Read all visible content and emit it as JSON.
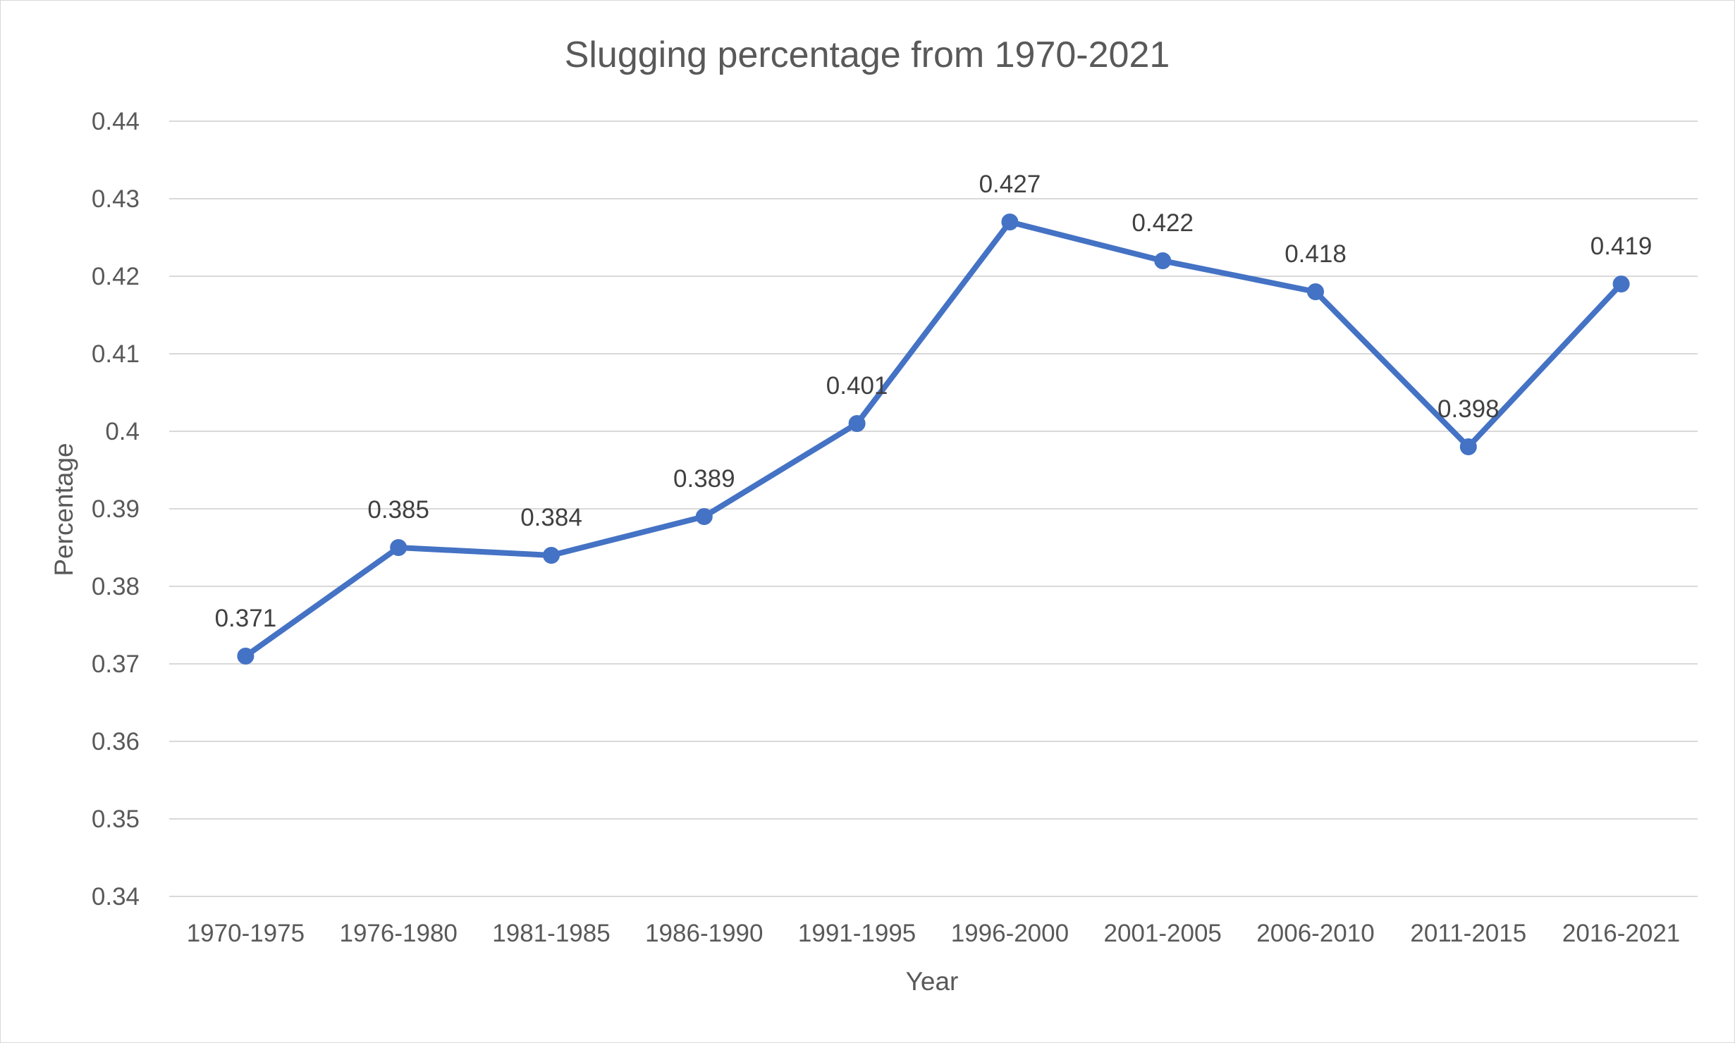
{
  "chart_data": {
    "type": "line",
    "title": "Slugging percentage from 1970-2021",
    "xlabel": "Year",
    "ylabel": "Percentage",
    "ylim": [
      0.34,
      0.44
    ],
    "yticks": [
      "0.34",
      "0.35",
      "0.36",
      "0.37",
      "0.38",
      "0.39",
      "0.4",
      "0.41",
      "0.42",
      "0.43",
      "0.44"
    ],
    "grid": true,
    "legend": "none",
    "categories": [
      "1970-1975",
      "1976-1980",
      "1981-1985",
      "1986-1990",
      "1991-1995",
      "1996-2000",
      "2001-2005",
      "2006-2010",
      "2011-2015",
      "2016-2021"
    ],
    "series": [
      {
        "values": [
          0.371,
          0.385,
          0.384,
          0.389,
          0.401,
          0.427,
          0.422,
          0.418,
          0.398,
          0.419
        ],
        "labels": [
          "0.371",
          "0.385",
          "0.384",
          "0.389",
          "0.401",
          "0.427",
          "0.422",
          "0.418",
          "0.398",
          "0.419"
        ],
        "color": "#4472c4"
      }
    ]
  }
}
